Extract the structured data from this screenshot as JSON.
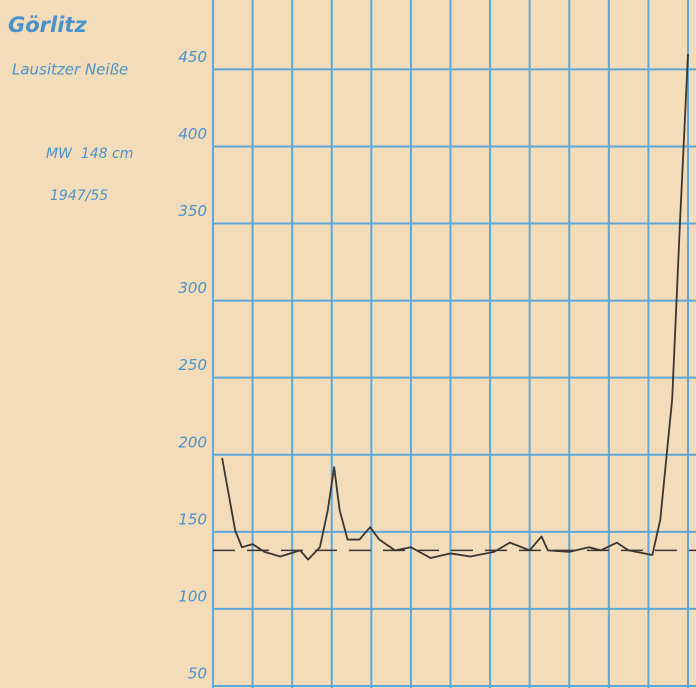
{
  "chart_data": {
    "type": "line",
    "title": "Görlitz",
    "subtitle": "Lausitzer Neiße",
    "annotations": [
      "MW  148 cm",
      "1947/55"
    ],
    "x": [
      0.23,
      0.56,
      0.73,
      1.0,
      1.3,
      1.7,
      2.2,
      2.4,
      2.7,
      2.9,
      3.06,
      3.2,
      3.4,
      3.7,
      3.97,
      4.2,
      4.6,
      5.0,
      5.5,
      6.0,
      6.5,
      7.1,
      7.5,
      8.0,
      8.3,
      8.46,
      9.0,
      9.5,
      9.8,
      10.2,
      10.5,
      11.1,
      11.3,
      11.6,
      11.8,
      12.0
    ],
    "series": [
      {
        "color": "#3a3530",
        "values": [
          198,
          151,
          140,
          142,
          137,
          134,
          138,
          132,
          140,
          164,
          192,
          164,
          145,
          145,
          153,
          145,
          138,
          140,
          133,
          136,
          134,
          137,
          143,
          138,
          147,
          138,
          137,
          140,
          138,
          143,
          138,
          135,
          158,
          236,
          352,
          460
        ]
      }
    ],
    "reference_line": 138,
    "xlim": [
      0,
      12
    ],
    "xticks": [
      0,
      1,
      2,
      3,
      4,
      5,
      6,
      7,
      8,
      9,
      10,
      11,
      12
    ],
    "ylim": [
      50,
      495
    ],
    "yticks": [
      50,
      100,
      150,
      200,
      250,
      300,
      350,
      400,
      450
    ],
    "grid": true,
    "grid_color": "#5ea7d9",
    "text_color": "#4b92cc",
    "background": "#f2dcb9"
  }
}
